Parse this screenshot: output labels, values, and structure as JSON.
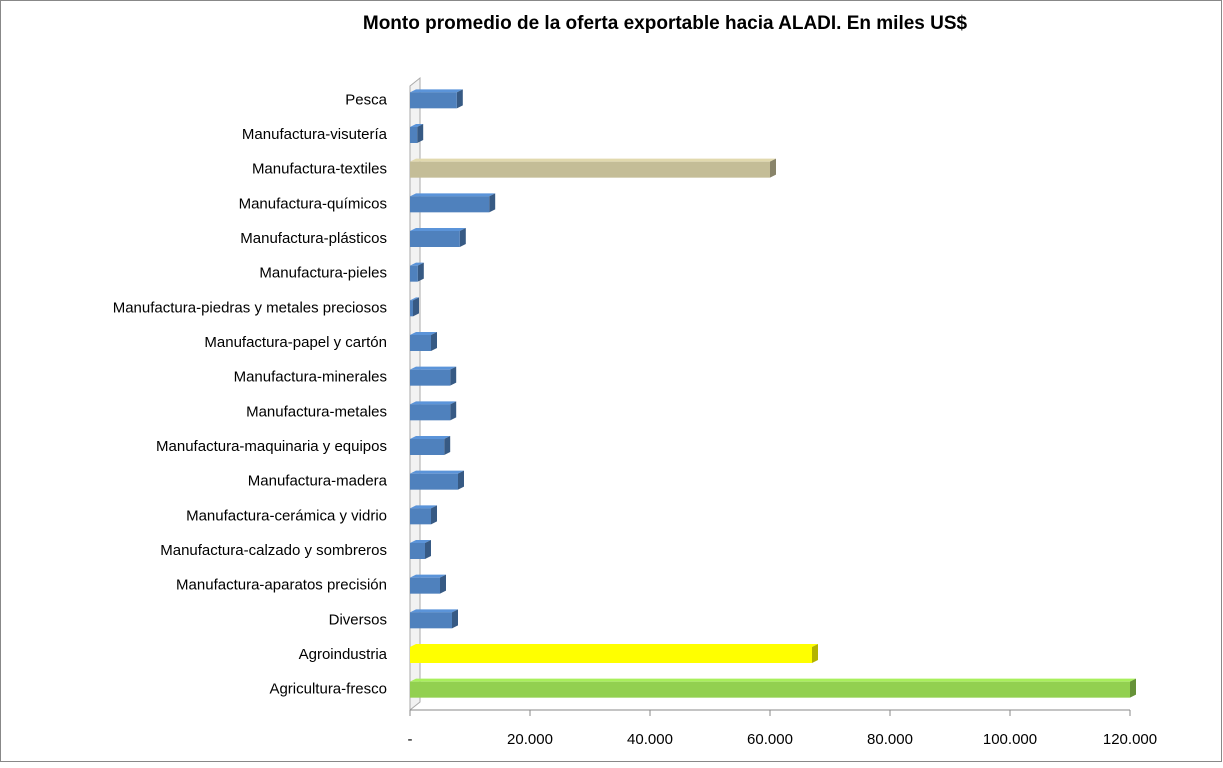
{
  "chart_data": {
    "type": "bar",
    "orientation": "horizontal",
    "title": "Monto promedio de la oferta exportable hacia ALADI. En miles US$",
    "categories": [
      "Pesca",
      "Manufactura-visutería",
      "Manufactura-textiles",
      "Manufactura-químicos",
      "Manufactura-plásticos",
      "Manufactura-pieles",
      "Manufactura-piedras y metales preciosos",
      "Manufactura-papel y cartón",
      "Manufactura-minerales",
      "Manufactura-metales",
      "Manufactura-maquinaria y equipos",
      "Manufactura-madera",
      "Manufactura-cerámica y vidrio",
      "Manufactura-calzado y sombreros",
      "Manufactura-aparatos precisión",
      "Diversos",
      "Agroindustria",
      "Agricultura-fresco"
    ],
    "values": [
      7800,
      1200,
      60000,
      13200,
      8300,
      1300,
      500,
      3500,
      6700,
      6700,
      5700,
      8000,
      3500,
      2500,
      5000,
      7000,
      67000,
      120000
    ],
    "colors": [
      "#4f81bd",
      "#4f81bd",
      "#c4bd97",
      "#4f81bd",
      "#4f81bd",
      "#4f81bd",
      "#4f81bd",
      "#4f81bd",
      "#4f81bd",
      "#4f81bd",
      "#4f81bd",
      "#4f81bd",
      "#4f81bd",
      "#4f81bd",
      "#4f81bd",
      "#4f81bd",
      "#ffff00",
      "#92d050"
    ],
    "xlim": [
      0,
      120000
    ],
    "xticks": [
      {
        "value": 0,
        "label": "-"
      },
      {
        "value": 20000,
        "label": "20.000"
      },
      {
        "value": 40000,
        "label": "40.000"
      },
      {
        "value": 60000,
        "label": "60.000"
      },
      {
        "value": 80000,
        "label": "80.000"
      },
      {
        "value": 100000,
        "label": "100.000"
      },
      {
        "value": 120000,
        "label": "120.000"
      }
    ]
  }
}
